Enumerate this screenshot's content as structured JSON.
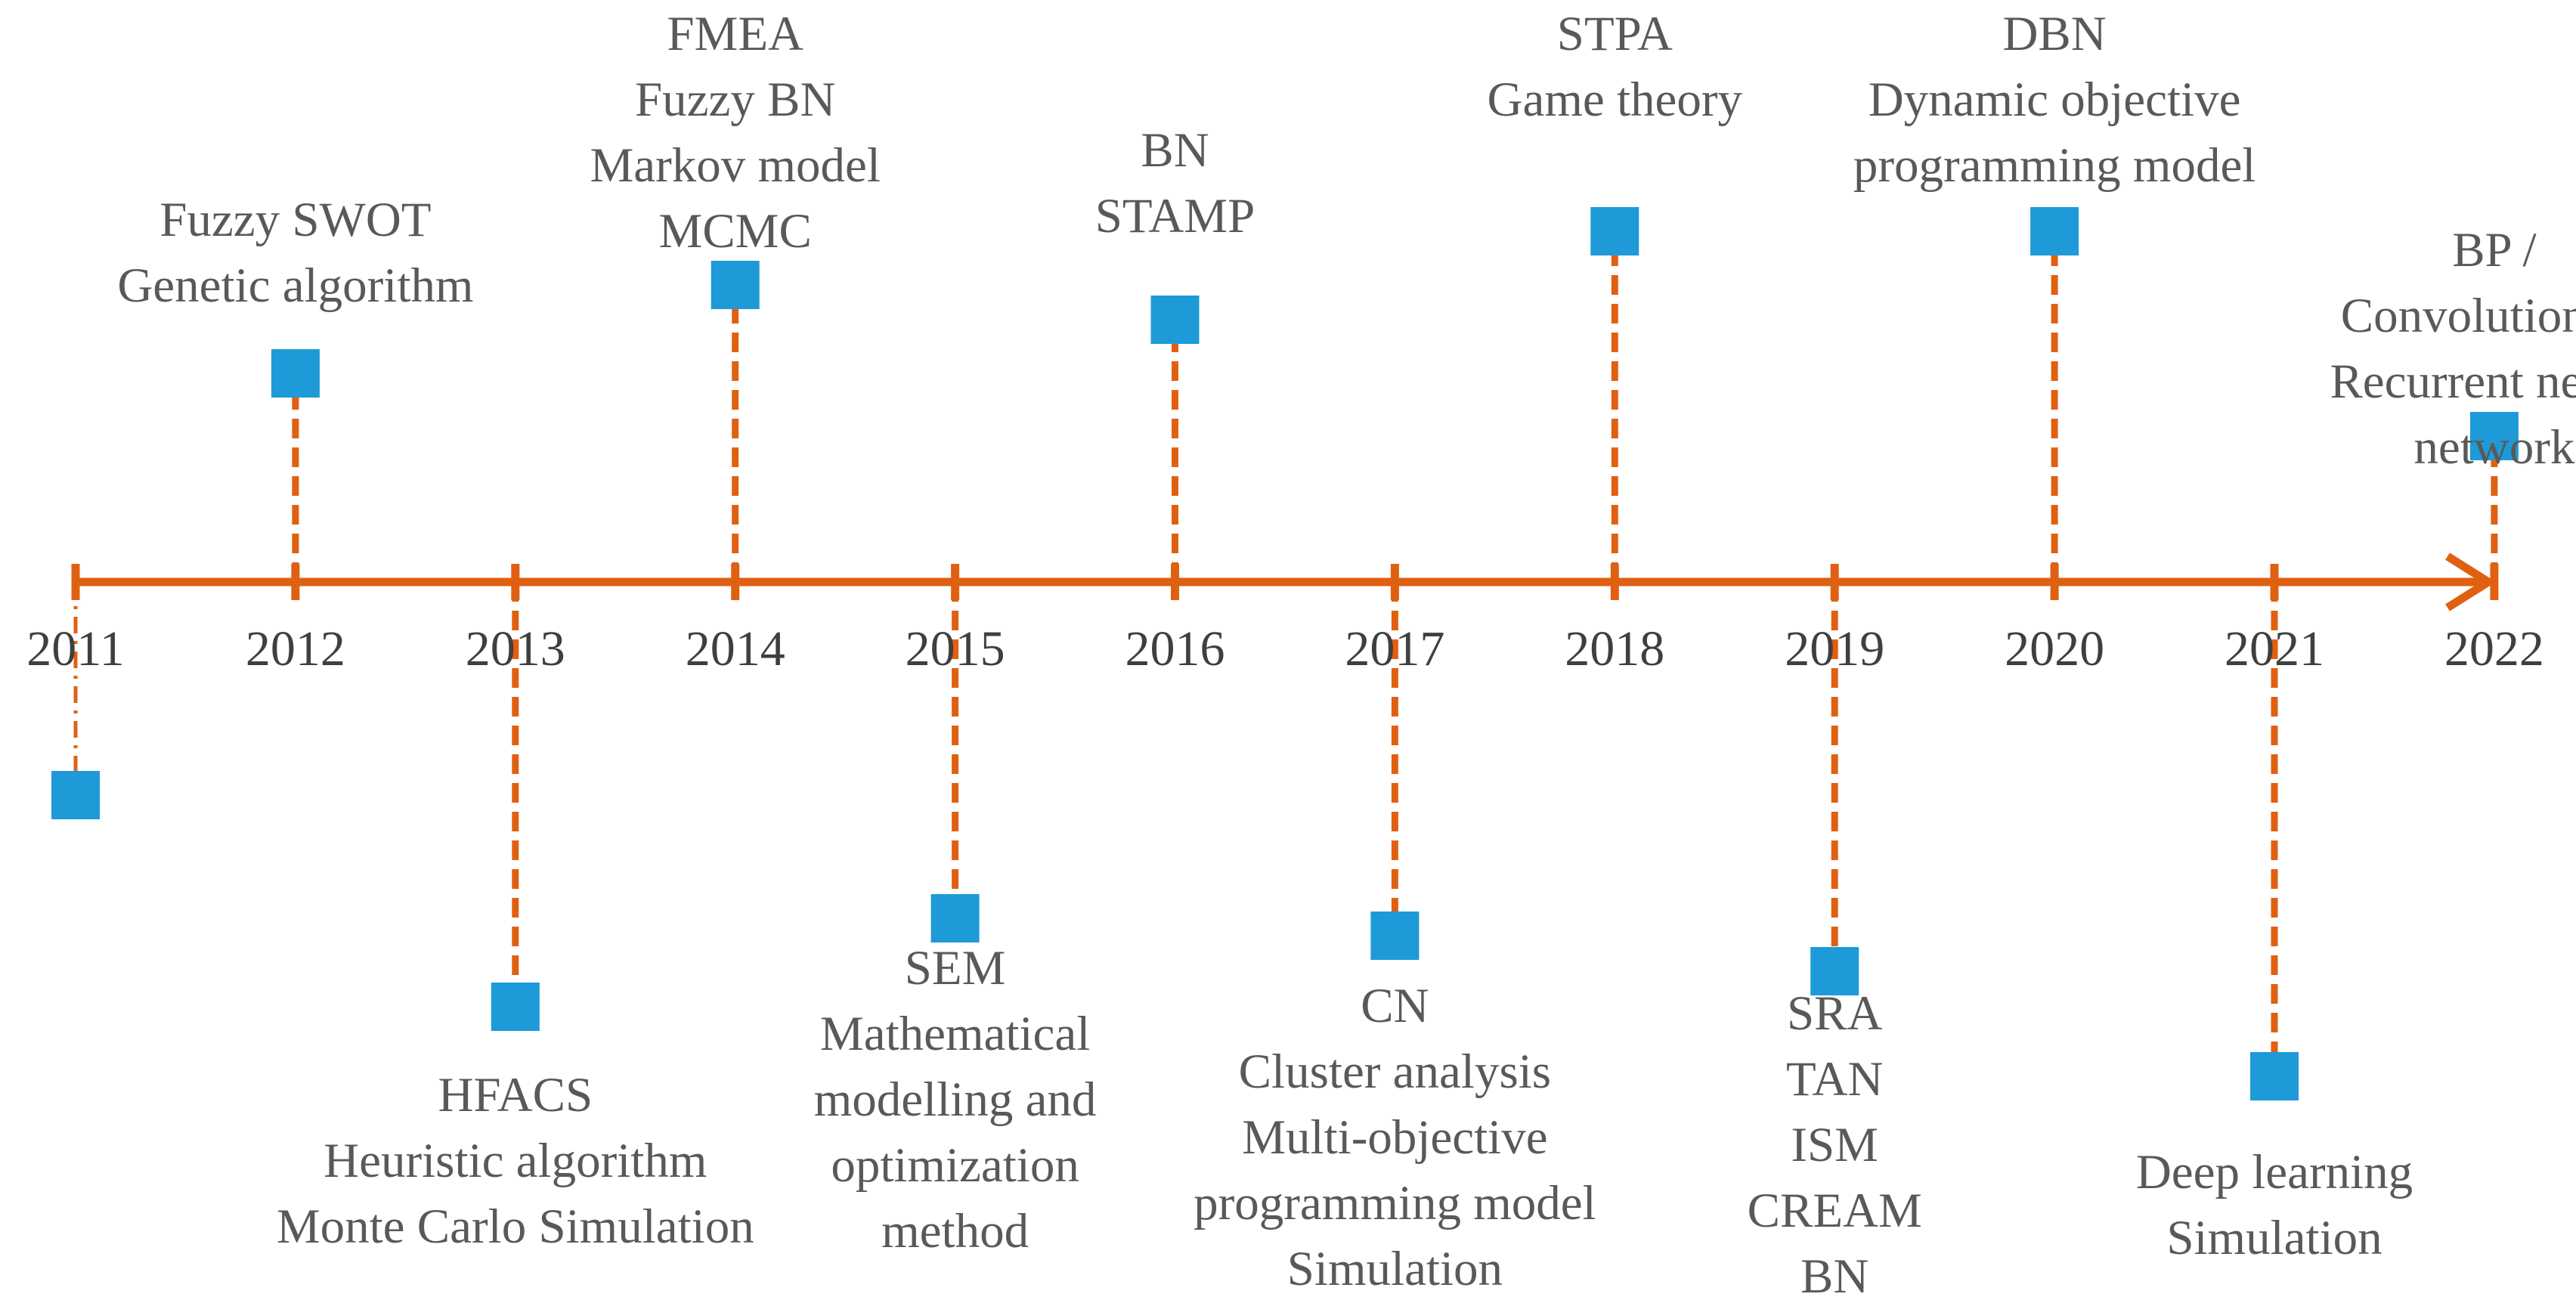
{
  "diagram": {
    "type": "timeline",
    "axis_color": "#E06012",
    "marker_color": "#1E9AD8",
    "events": [
      {
        "year": "2011",
        "side": "below",
        "methods": []
      },
      {
        "year": "2012",
        "side": "above",
        "methods": [
          "Fuzzy SWOT",
          "Genetic algorithm"
        ]
      },
      {
        "year": "2013",
        "side": "below",
        "methods": [
          "HFACS",
          "Heuristic algorithm",
          "Monte Carlo Simulation"
        ]
      },
      {
        "year": "2014",
        "side": "above",
        "methods": [
          "FMEA",
          "Fuzzy BN",
          "Markov model",
          "MCMC"
        ]
      },
      {
        "year": "2015",
        "side": "below",
        "methods": [
          "SEM",
          "Mathematical",
          "modelling and",
          "optimization",
          "method"
        ]
      },
      {
        "year": "2016",
        "side": "above",
        "methods": [
          "BN",
          "STAMP"
        ]
      },
      {
        "year": "2017",
        "side": "below",
        "methods": [
          "CN",
          "Cluster analysis",
          "Multi-objective",
          "programming model",
          "Simulation"
        ]
      },
      {
        "year": "2018",
        "side": "above",
        "methods": [
          "STPA",
          "Game theory"
        ]
      },
      {
        "year": "2019",
        "side": "below",
        "methods": [
          "SRA",
          "TAN",
          "ISM",
          "CREAM",
          "BN"
        ]
      },
      {
        "year": "2020",
        "side": "above",
        "methods": [
          "DBN",
          "Dynamic objective",
          "programming model"
        ]
      },
      {
        "year": "2021",
        "side": "below",
        "methods": [
          "Deep learning",
          "Simulation"
        ]
      },
      {
        "year": "2022",
        "side": "above",
        "methods": [
          "BP /",
          "Convolutional /",
          "Recurrent neural",
          "network"
        ]
      }
    ]
  }
}
